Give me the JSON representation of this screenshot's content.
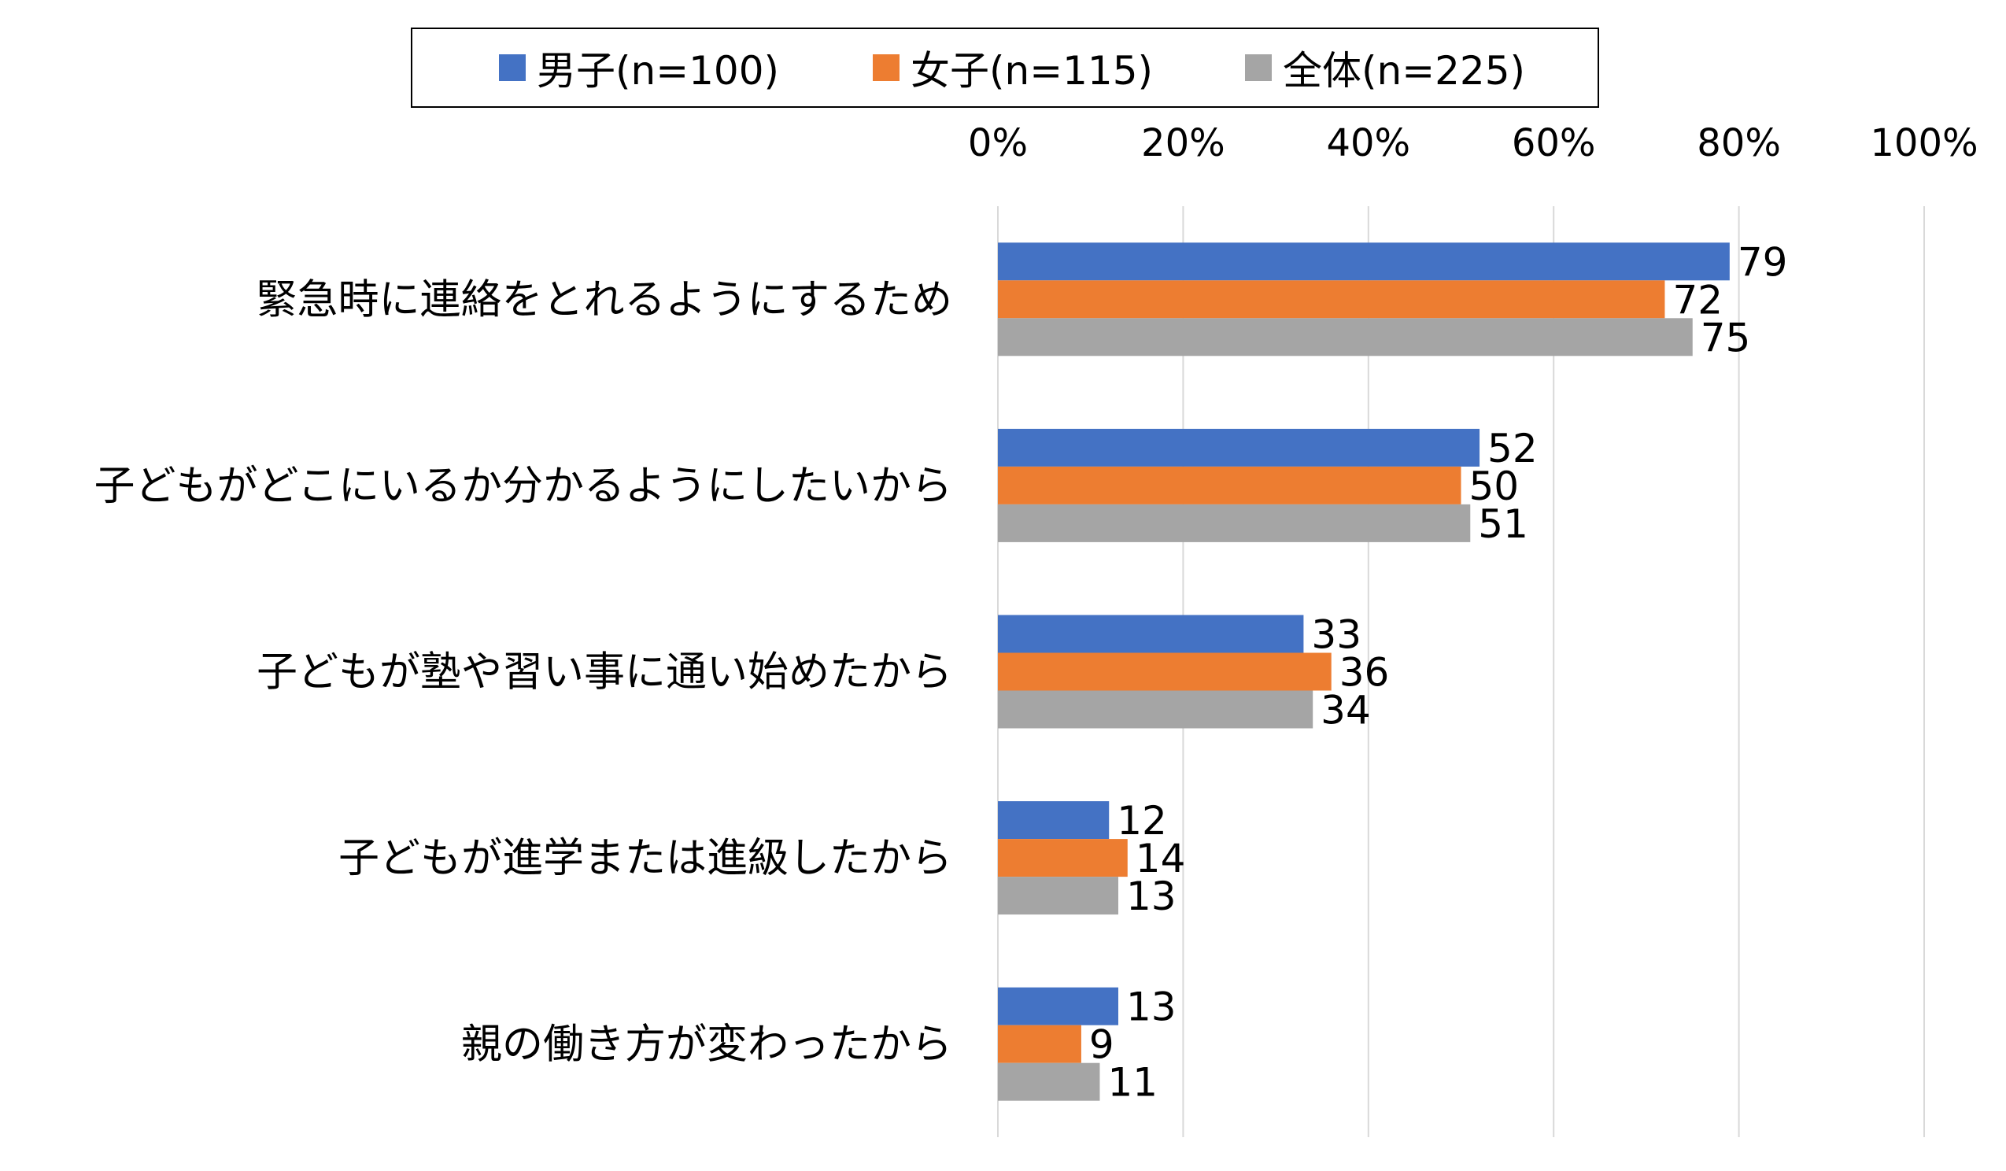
{
  "chart_data": {
    "type": "bar",
    "orientation": "horizontal",
    "title": "",
    "xlabel": "",
    "ylabel": "",
    "xlim": [
      0,
      100
    ],
    "x_ticks": [
      "0%",
      "20%",
      "40%",
      "60%",
      "80%",
      "100%"
    ],
    "x_axis_position": "top",
    "grid": "vertical gridlines",
    "legend_position": "top",
    "categories": [
      "緊急時に連絡をとれるようにするため",
      "子どもがどこにいるか分かるようにしたいから",
      "子どもが塾や習い事に通い始めたから",
      "子どもが進学または進級したから",
      "親の働き方が変わったから"
    ],
    "series": [
      {
        "name": "男子(n=100)",
        "color": "#4472C4",
        "values": [
          79,
          52,
          33,
          12,
          13
        ]
      },
      {
        "name": "女子(n=115)",
        "color": "#ED7D31",
        "values": [
          72,
          50,
          36,
          14,
          9
        ]
      },
      {
        "name": "全体(n=225)",
        "color": "#A5A5A5",
        "values": [
          75,
          51,
          34,
          13,
          11
        ]
      }
    ]
  }
}
